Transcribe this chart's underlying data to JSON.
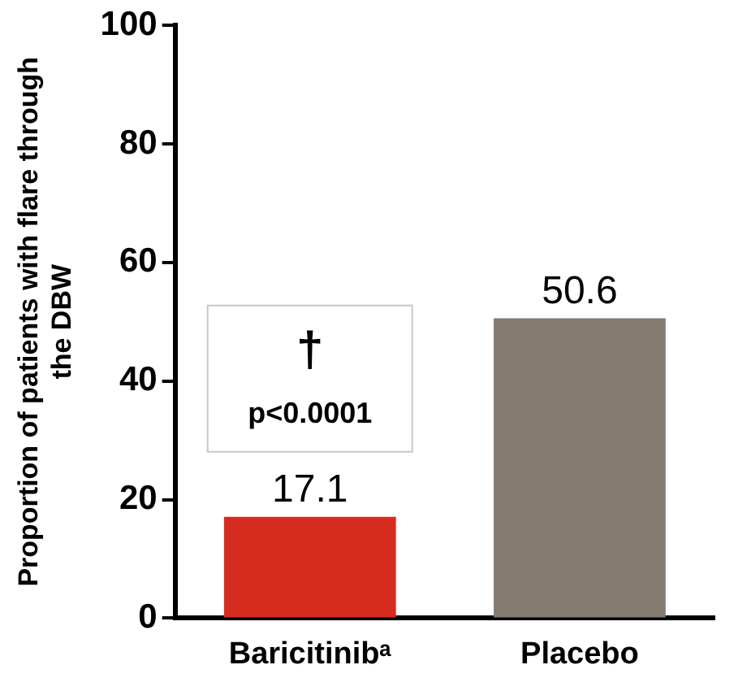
{
  "chart_data": {
    "type": "bar",
    "ylabel": "Proportion of patients with flare through the DBW",
    "categories": [
      "Baricitinibᵃ",
      "Placebo"
    ],
    "values": [
      17.1,
      50.6
    ],
    "colors": [
      "#d62b1f",
      "#857a70"
    ],
    "ylim": [
      0,
      100
    ],
    "yticks": [
      0,
      20,
      40,
      60,
      80,
      100
    ],
    "grid": false,
    "legend": false,
    "data_labels": true,
    "annotations": [
      "†",
      "p<0.0001"
    ]
  }
}
